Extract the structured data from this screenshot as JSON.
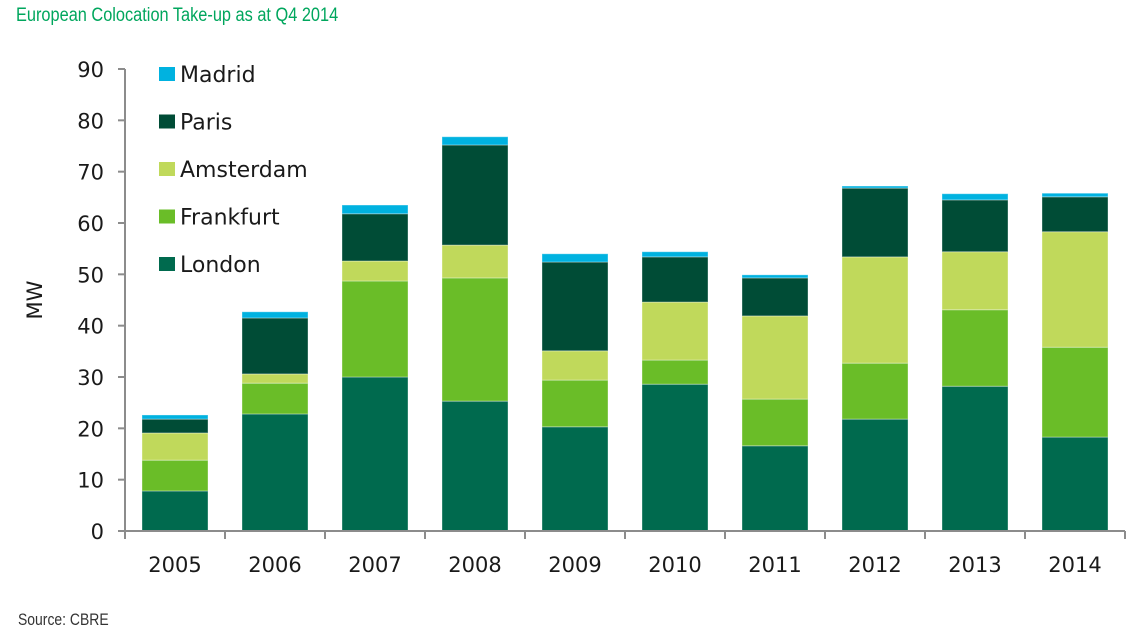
{
  "chart_data": {
    "type": "bar",
    "stacked": true,
    "title": "European Colocation Take-up as at Q4 2014",
    "xlabel": "",
    "ylabel": "MW",
    "ylim": [
      0,
      90
    ],
    "yticks": [
      0,
      10,
      20,
      30,
      40,
      50,
      60,
      70,
      80,
      90
    ],
    "grid": false,
    "legend_position": "top-left",
    "categories": [
      "2005",
      "2006",
      "2007",
      "2008",
      "2009",
      "2010",
      "2011",
      "2012",
      "2013",
      "2014"
    ],
    "series": [
      {
        "name": "London",
        "color": "#006A4E",
        "values": [
          7.8,
          22.8,
          30.0,
          25.3,
          20.3,
          28.6,
          16.6,
          21.8,
          28.2,
          18.3
        ]
      },
      {
        "name": "Frankfurt",
        "color": "#6ABD28",
        "values": [
          6.0,
          6.0,
          18.7,
          24.0,
          9.1,
          4.7,
          9.1,
          10.9,
          14.9,
          17.5
        ]
      },
      {
        "name": "Amsterdam",
        "color": "#C0D95B",
        "values": [
          5.3,
          1.8,
          3.9,
          6.4,
          5.7,
          11.3,
          16.2,
          20.7,
          11.3,
          22.5
        ]
      },
      {
        "name": "Paris",
        "color": "#004C36",
        "values": [
          2.7,
          10.9,
          9.2,
          19.5,
          17.3,
          8.8,
          7.4,
          13.4,
          10.1,
          6.8
        ]
      },
      {
        "name": "Madrid",
        "color": "#00B2E0",
        "values": [
          0.8,
          1.2,
          1.7,
          1.6,
          1.6,
          1.0,
          0.6,
          0.4,
          1.2,
          0.7
        ]
      }
    ],
    "legend_order": [
      "Madrid",
      "Paris",
      "Amsterdam",
      "Frankfurt",
      "London"
    ]
  },
  "footer": {
    "source": "Source:  CBRE"
  }
}
